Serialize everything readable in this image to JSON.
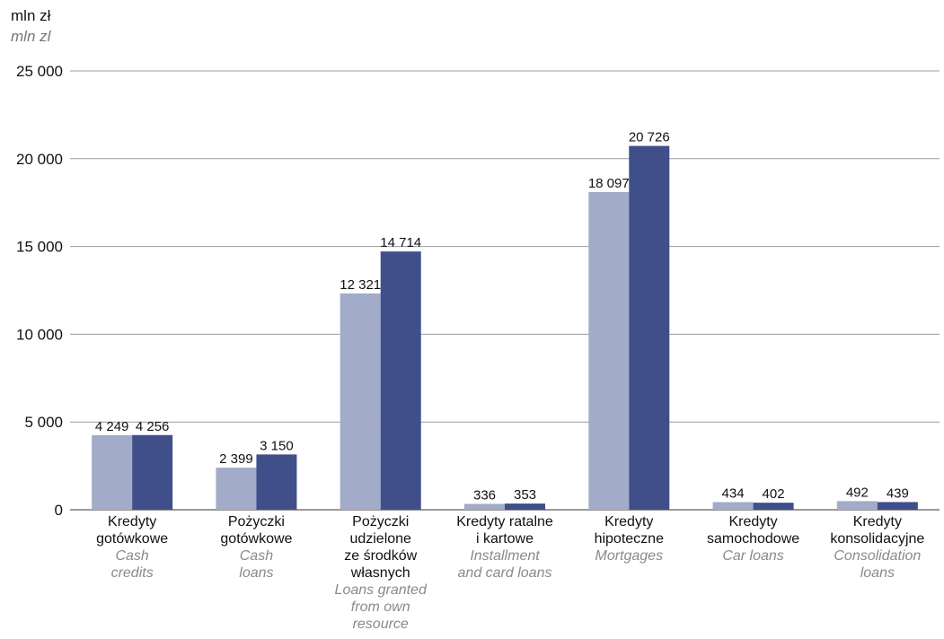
{
  "unit": {
    "pl": "mln zł",
    "en": "mln zl"
  },
  "colors": {
    "series1": "#a2acc9",
    "series2": "#404f8a",
    "grid": "#999999",
    "text": "#111111",
    "subtext": "#8a8a8a"
  },
  "chart_data": {
    "type": "bar",
    "categories": [
      {
        "pl": "Kredyty\ngotówkowe",
        "en": "Cash\ncredits"
      },
      {
        "pl": "Pożyczki\ngotówkowe",
        "en": "Cash\nloans"
      },
      {
        "pl": "Pożyczki\nudzielone\nze środków\nwłasnych",
        "en": "Loans granted\nfrom own\nresource"
      },
      {
        "pl": "Kredyty ratalne\ni kartowe",
        "en": "Installment\nand card loans"
      },
      {
        "pl": "Kredyty\nhipoteczne",
        "en": "Mortgages"
      },
      {
        "pl": "Kredyty\nsamochodowe",
        "en": "Car loans"
      },
      {
        "pl": "Kredyty\nkonsolidacyjne",
        "en": "Consolidation\nloans"
      }
    ],
    "series": [
      {
        "values": [
          4249,
          2399,
          12321,
          336,
          18097,
          434,
          492
        ]
      },
      {
        "values": [
          4256,
          3150,
          14714,
          353,
          20726,
          402,
          439
        ]
      }
    ],
    "value_labels": [
      [
        "4 249",
        "2 399",
        "12 321",
        "336",
        "18 097",
        "434",
        "492"
      ],
      [
        "4 256",
        "3 150",
        "14 714",
        "353",
        "20 726",
        "402",
        "439"
      ]
    ],
    "yticks": [
      "0",
      "5 000",
      "10 000",
      "15 000",
      "20 000",
      "25 000"
    ],
    "ylim": [
      0,
      25000
    ],
    "grid": true
  }
}
